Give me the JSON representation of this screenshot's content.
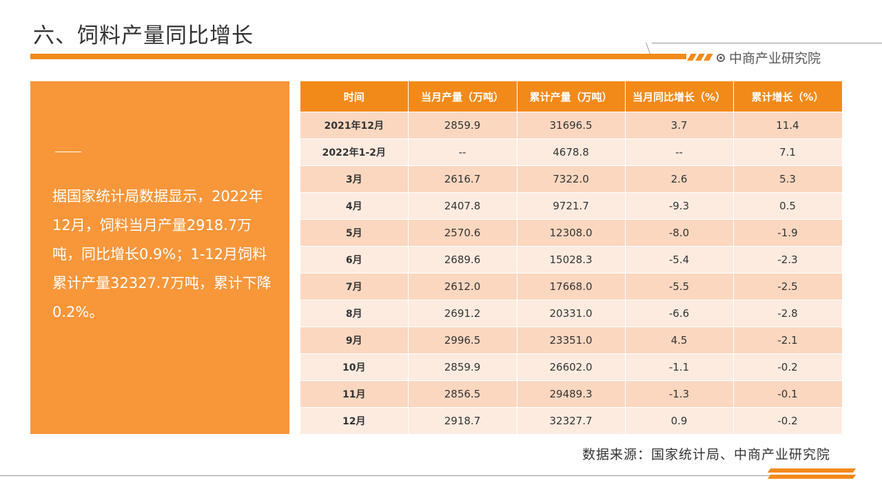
{
  "title": "六、饲料产量同比增长",
  "brand": {
    "name": "中商产业研究院",
    "icon": "ring-logo-icon"
  },
  "summary": {
    "text": "据国家统计局数据显示，2022年12月，饲料当月产量2918.7万吨，同比增长0.9%；1-12月饲料累计产量32327.7万吨，累计下降0.2%。"
  },
  "table": {
    "headers": [
      "时间",
      "当月产量（万吨）",
      "累计产量（万吨）",
      "当月同比增长（%）",
      "累计增长（%）"
    ],
    "rows": [
      [
        "2021年12月",
        "2859.9",
        "31696.5",
        "3.7",
        "11.4"
      ],
      [
        "2022年1-2月",
        "--",
        "4678.8",
        "--",
        "7.1"
      ],
      [
        "3月",
        "2616.7",
        "7322.0",
        "2.6",
        "5.3"
      ],
      [
        "4月",
        "2407.8",
        "9721.7",
        "-9.3",
        "0.5"
      ],
      [
        "5月",
        "2570.6",
        "12308.0",
        "-8.0",
        "-1.9"
      ],
      [
        "6月",
        "2689.6",
        "15028.3",
        "-5.4",
        "-2.3"
      ],
      [
        "7月",
        "2612.0",
        "17668.0",
        "-5.5",
        "-2.5"
      ],
      [
        "8月",
        "2691.2",
        "20331.0",
        "-6.6",
        "-2.8"
      ],
      [
        "9月",
        "2996.5",
        "23351.0",
        "4.5",
        "-2.1"
      ],
      [
        "10月",
        "2859.9",
        "26602.0",
        "-1.1",
        "-0.2"
      ],
      [
        "11月",
        "2856.5",
        "29489.3",
        "-1.3",
        "-0.1"
      ],
      [
        "12月",
        "2918.7",
        "32327.7",
        "0.9",
        "-0.2"
      ]
    ]
  },
  "source": "数据来源：国家统计局、中商产业研究院",
  "colors": {
    "accent": "#f28a1a",
    "panel": "#f8963a",
    "row_odd": "#fbd7c0",
    "row_even": "#fdebe0"
  }
}
